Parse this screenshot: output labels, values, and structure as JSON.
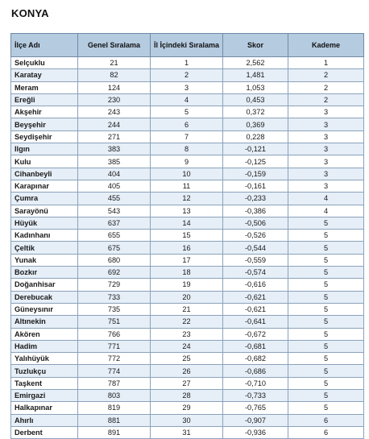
{
  "title": "KONYA",
  "headers": {
    "ilce": "İlçe Adı",
    "genel": "Genel Sıralama",
    "il_ici": "İl İçindeki Sıralama",
    "skor": "Skor",
    "kademe": "Kademe"
  },
  "rows": [
    {
      "ilce": "Selçuklu",
      "genel": "21",
      "il_ici": "1",
      "skor": "2,562",
      "kademe": "1"
    },
    {
      "ilce": "Karatay",
      "genel": "82",
      "il_ici": "2",
      "skor": "1,481",
      "kademe": "2"
    },
    {
      "ilce": "Meram",
      "genel": "124",
      "il_ici": "3",
      "skor": "1,053",
      "kademe": "2"
    },
    {
      "ilce": "Ereğli",
      "genel": "230",
      "il_ici": "4",
      "skor": "0,453",
      "kademe": "2"
    },
    {
      "ilce": "Akşehir",
      "genel": "243",
      "il_ici": "5",
      "skor": "0,372",
      "kademe": "3"
    },
    {
      "ilce": "Beyşehir",
      "genel": "244",
      "il_ici": "6",
      "skor": "0,369",
      "kademe": "3"
    },
    {
      "ilce": "Seydişehir",
      "genel": "271",
      "il_ici": "7",
      "skor": "0,228",
      "kademe": "3"
    },
    {
      "ilce": "Ilgın",
      "genel": "383",
      "il_ici": "8",
      "skor": "-0,121",
      "kademe": "3"
    },
    {
      "ilce": "Kulu",
      "genel": "385",
      "il_ici": "9",
      "skor": "-0,125",
      "kademe": "3"
    },
    {
      "ilce": "Cihanbeyli",
      "genel": "404",
      "il_ici": "10",
      "skor": "-0,159",
      "kademe": "3"
    },
    {
      "ilce": "Karapınar",
      "genel": "405",
      "il_ici": "11",
      "skor": "-0,161",
      "kademe": "3"
    },
    {
      "ilce": "Çumra",
      "genel": "455",
      "il_ici": "12",
      "skor": "-0,233",
      "kademe": "4"
    },
    {
      "ilce": "Sarayönü",
      "genel": "543",
      "il_ici": "13",
      "skor": "-0,386",
      "kademe": "4"
    },
    {
      "ilce": "Hüyük",
      "genel": "637",
      "il_ici": "14",
      "skor": "-0,506",
      "kademe": "5"
    },
    {
      "ilce": "Kadınhanı",
      "genel": "655",
      "il_ici": "15",
      "skor": "-0,526",
      "kademe": "5"
    },
    {
      "ilce": "Çeltik",
      "genel": "675",
      "il_ici": "16",
      "skor": "-0,544",
      "kademe": "5"
    },
    {
      "ilce": "Yunak",
      "genel": "680",
      "il_ici": "17",
      "skor": "-0,559",
      "kademe": "5"
    },
    {
      "ilce": "Bozkır",
      "genel": "692",
      "il_ici": "18",
      "skor": "-0,574",
      "kademe": "5"
    },
    {
      "ilce": "Doğanhisar",
      "genel": "729",
      "il_ici": "19",
      "skor": "-0,616",
      "kademe": "5"
    },
    {
      "ilce": "Derebucak",
      "genel": "733",
      "il_ici": "20",
      "skor": "-0,621",
      "kademe": "5"
    },
    {
      "ilce": "Güneysınır",
      "genel": "735",
      "il_ici": "21",
      "skor": "-0,621",
      "kademe": "5"
    },
    {
      "ilce": "Altınekin",
      "genel": "751",
      "il_ici": "22",
      "skor": "-0,641",
      "kademe": "5"
    },
    {
      "ilce": "Akören",
      "genel": "766",
      "il_ici": "23",
      "skor": "-0,672",
      "kademe": "5"
    },
    {
      "ilce": "Hadim",
      "genel": "771",
      "il_ici": "24",
      "skor": "-0,681",
      "kademe": "5"
    },
    {
      "ilce": "Yalıhüyük",
      "genel": "772",
      "il_ici": "25",
      "skor": "-0,682",
      "kademe": "5"
    },
    {
      "ilce": "Tuzlukçu",
      "genel": "774",
      "il_ici": "26",
      "skor": "-0,686",
      "kademe": "5"
    },
    {
      "ilce": "Taşkent",
      "genel": "787",
      "il_ici": "27",
      "skor": "-0,710",
      "kademe": "5"
    },
    {
      "ilce": "Emirgazi",
      "genel": "803",
      "il_ici": "28",
      "skor": "-0,733",
      "kademe": "5"
    },
    {
      "ilce": "Halkapınar",
      "genel": "819",
      "il_ici": "29",
      "skor": "-0,765",
      "kademe": "5"
    },
    {
      "ilce": "Ahırlı",
      "genel": "881",
      "il_ici": "30",
      "skor": "-0,907",
      "kademe": "6"
    },
    {
      "ilce": "Derbent",
      "genel": "891",
      "il_ici": "31",
      "skor": "-0,936",
      "kademe": "6"
    }
  ]
}
